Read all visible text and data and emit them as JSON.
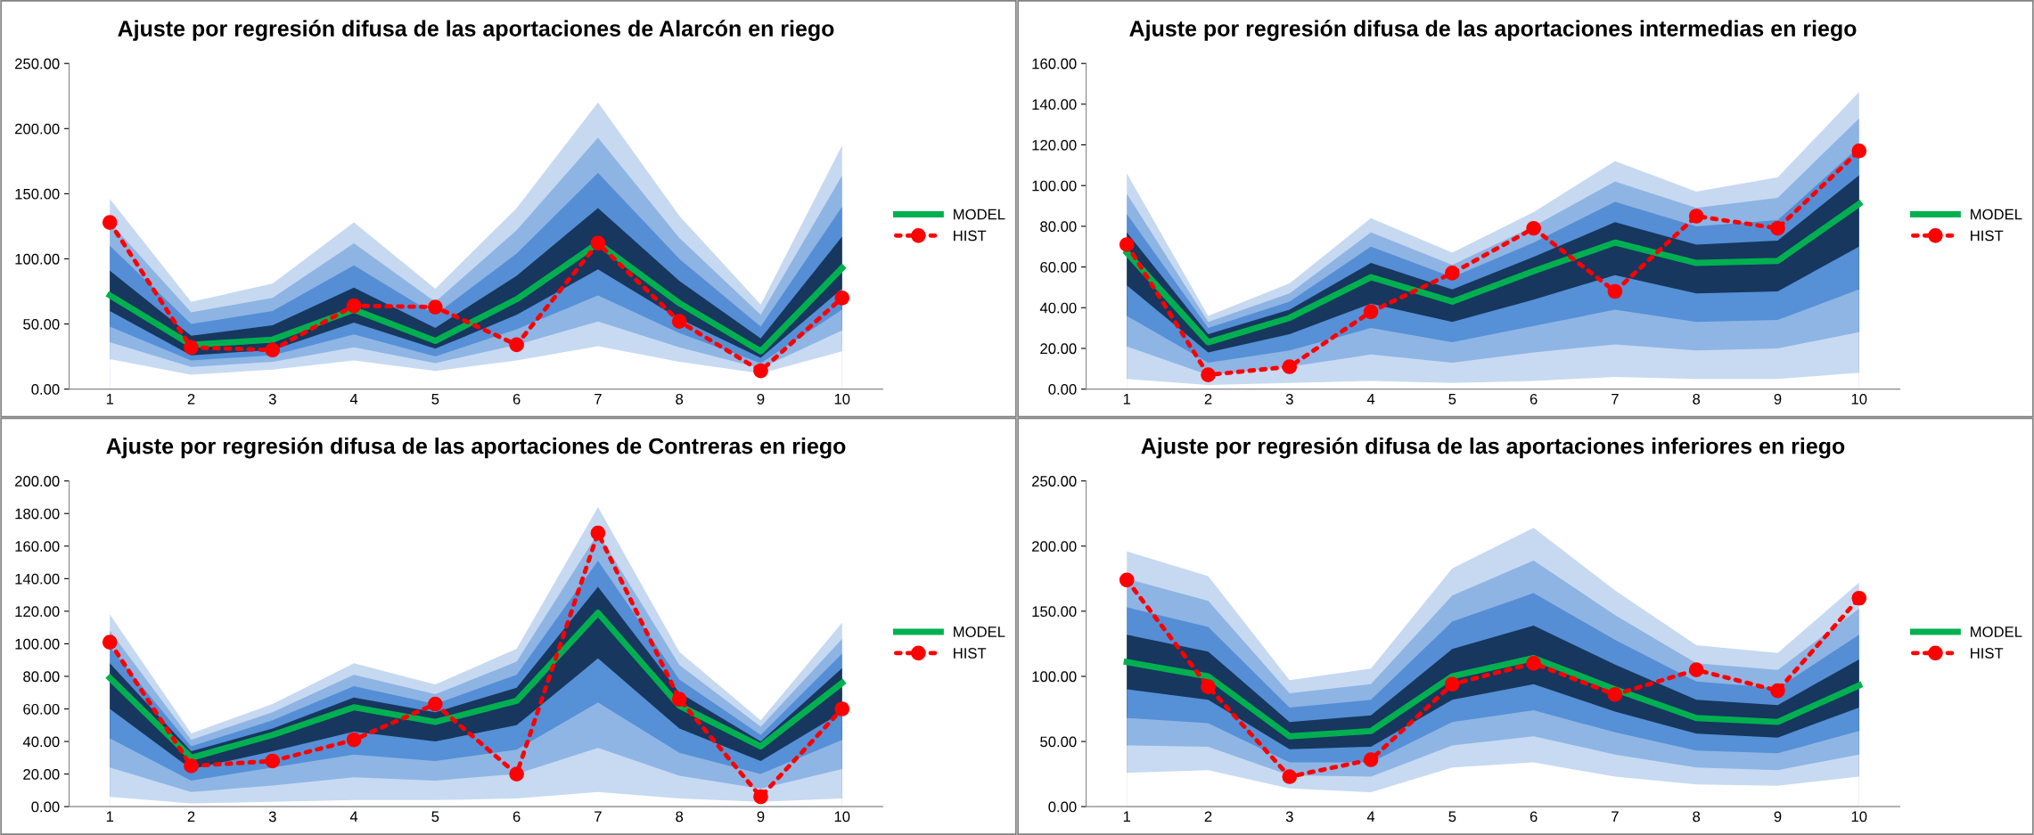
{
  "chart_data": [
    {
      "type": "line",
      "title": "Ajuste por regresión difusa de las aportaciones de Alarcón en riego",
      "categories": [
        "1",
        "2",
        "3",
        "4",
        "5",
        "6",
        "7",
        "8",
        "9",
        "10"
      ],
      "ylim": [
        0,
        250
      ],
      "yticks": [
        {
          "value": 0,
          "label": "0.00"
        },
        {
          "value": 50,
          "label": "50.00"
        },
        {
          "value": 100,
          "label": "100.00"
        },
        {
          "value": 150,
          "label": "150.00"
        },
        {
          "value": 200,
          "label": "200.00"
        },
        {
          "value": 250,
          "label": "250.00"
        }
      ],
      "legend": "right",
      "grid": false,
      "series": [
        {
          "type": "area",
          "color": "#c6d9f1",
          "values": [
            146,
            67,
            81,
            128,
            77,
            139,
            220,
            133,
            65,
            187
          ]
        },
        {
          "type": "area",
          "color": "#8eb4e3",
          "values": [
            128,
            59,
            70,
            112,
            67,
            122,
            193,
            116,
            57,
            164
          ]
        },
        {
          "type": "area",
          "color": "#558ed5",
          "values": [
            110,
            50,
            60,
            95,
            57,
            104,
            166,
            100,
            48,
            140
          ]
        },
        {
          "type": "area",
          "color": "#17375e",
          "values": [
            91,
            41,
            49,
            78,
            47,
            87,
            139,
            83,
            39,
            117
          ]
        },
        {
          "type": "area",
          "color": "#5690d6",
          "values": [
            60,
            26,
            30,
            51,
            31,
            57,
            92,
            54,
            24,
            77
          ]
        },
        {
          "type": "area",
          "color": "#8fb5e4",
          "values": [
            48,
            22,
            26,
            42,
            25,
            46,
            72,
            43,
            20,
            61
          ]
        },
        {
          "type": "area",
          "color": "#c7daf2",
          "values": [
            36,
            17,
            21,
            32,
            20,
            34,
            52,
            32,
            16,
            45
          ]
        },
        {
          "type": "area",
          "color": "#ffffff",
          "values": [
            23,
            11,
            15,
            22,
            14,
            22,
            33,
            21,
            12,
            29
          ]
        },
        {
          "name": "MODEL",
          "type": "line",
          "color": "#00b050",
          "marker": "none",
          "line_style": "solid",
          "values": [
            72,
            34,
            38,
            61,
            37,
            69,
            112,
            66,
            29,
            93
          ]
        },
        {
          "name": "HIST",
          "type": "line",
          "color": "#ff0000",
          "marker": "circle",
          "line_style": "dotted",
          "values": [
            128,
            32,
            30,
            64,
            63,
            34,
            112,
            52,
            14,
            70
          ]
        }
      ]
    },
    {
      "type": "line",
      "title": "Ajuste por regresión difusa de las aportaciones intermedias en riego",
      "categories": [
        "1",
        "2",
        "3",
        "4",
        "5",
        "6",
        "7",
        "8",
        "9",
        "10"
      ],
      "ylim": [
        0,
        160
      ],
      "yticks": [
        {
          "value": 0,
          "label": "0.00"
        },
        {
          "value": 20,
          "label": "20.00"
        },
        {
          "value": 40,
          "label": "40.00"
        },
        {
          "value": 60,
          "label": "60.00"
        },
        {
          "value": 80,
          "label": "80.00"
        },
        {
          "value": 100,
          "label": "100.00"
        },
        {
          "value": 120,
          "label": "120.00"
        },
        {
          "value": 140,
          "label": "140.00"
        },
        {
          "value": 160,
          "label": "160.00"
        }
      ],
      "legend": "right",
      "grid": false,
      "series": [
        {
          "type": "area",
          "color": "#c6d9f1",
          "values": [
            106,
            36,
            52,
            84,
            67,
            87,
            112,
            97,
            104,
            146
          ]
        },
        {
          "type": "area",
          "color": "#8eb4e3",
          "values": [
            96,
            33,
            47,
            77,
            61,
            80,
            102,
            89,
            94,
            133
          ]
        },
        {
          "type": "area",
          "color": "#558ed5",
          "values": [
            86,
            30,
            43,
            70,
            55,
            72,
            92,
            80,
            83,
            119
          ]
        },
        {
          "type": "area",
          "color": "#17375e",
          "values": [
            77,
            27,
            39,
            62,
            49,
            65,
            82,
            71,
            73,
            105
          ]
        },
        {
          "type": "area",
          "color": "#5690d6",
          "values": [
            51,
            18,
            27,
            42,
            33,
            44,
            56,
            47,
            48,
            70
          ]
        },
        {
          "type": "area",
          "color": "#8fb5e4",
          "values": [
            36,
            13,
            19,
            30,
            23,
            31,
            39,
            33,
            34,
            49
          ]
        },
        {
          "type": "area",
          "color": "#c7daf2",
          "values": [
            21,
            7,
            11,
            17,
            13,
            18,
            22,
            19,
            20,
            28
          ]
        },
        {
          "type": "area",
          "color": "#ffffff",
          "values": [
            5,
            2,
            3,
            4,
            3,
            4,
            6,
            5,
            5,
            8
          ]
        },
        {
          "name": "MODEL",
          "type": "line",
          "color": "#00b050",
          "marker": "none",
          "line_style": "solid",
          "values": [
            67,
            23,
            35,
            55,
            43,
            58,
            72,
            62,
            63,
            91
          ]
        },
        {
          "name": "HIST",
          "type": "line",
          "color": "#ff0000",
          "marker": "circle",
          "line_style": "dotted",
          "values": [
            71,
            7,
            11,
            38,
            57,
            79,
            48,
            85,
            79,
            117
          ]
        }
      ]
    },
    {
      "type": "line",
      "title": "Ajuste por regresión difusa de las aportaciones de Contreras en riego",
      "categories": [
        "1",
        "2",
        "3",
        "4",
        "5",
        "6",
        "7",
        "8",
        "9",
        "10"
      ],
      "ylim": [
        0,
        200
      ],
      "yticks": [
        {
          "value": 0,
          "label": "0.00"
        },
        {
          "value": 20,
          "label": "20.00"
        },
        {
          "value": 40,
          "label": "40.00"
        },
        {
          "value": 60,
          "label": "60.00"
        },
        {
          "value": 80,
          "label": "80.00"
        },
        {
          "value": 100,
          "label": "100.00"
        },
        {
          "value": 120,
          "label": "120.00"
        },
        {
          "value": 140,
          "label": "140.00"
        },
        {
          "value": 160,
          "label": "160.00"
        },
        {
          "value": 180,
          "label": "180.00"
        },
        {
          "value": 200,
          "label": "200.00"
        }
      ],
      "legend": "right",
      "grid": false,
      "series": [
        {
          "type": "area",
          "color": "#c6d9f1",
          "values": [
            118,
            45,
            63,
            88,
            75,
            97,
            184,
            95,
            53,
            113
          ]
        },
        {
          "type": "area",
          "color": "#8eb4e3",
          "values": [
            108,
            41,
            58,
            81,
            69,
            89,
            168,
            87,
            49,
            103
          ]
        },
        {
          "type": "area",
          "color": "#558ed5",
          "values": [
            98,
            37,
            53,
            74,
            63,
            81,
            151,
            78,
            44,
            94
          ]
        },
        {
          "type": "area",
          "color": "#17375e",
          "values": [
            88,
            34,
            48,
            67,
            58,
            73,
            135,
            70,
            40,
            85
          ]
        },
        {
          "type": "area",
          "color": "#5690d6",
          "values": [
            60,
            23,
            34,
            46,
            40,
            50,
            91,
            48,
            28,
            58
          ]
        },
        {
          "type": "area",
          "color": "#8fb5e4",
          "values": [
            42,
            16,
            24,
            32,
            28,
            35,
            64,
            33,
            20,
            41
          ]
        },
        {
          "type": "area",
          "color": "#c7daf2",
          "values": [
            24,
            9,
            13,
            18,
            16,
            20,
            36,
            19,
            11,
            23
          ]
        },
        {
          "type": "area",
          "color": "#ffffff",
          "values": [
            6,
            2,
            3,
            4,
            4,
            5,
            9,
            5,
            3,
            5
          ]
        },
        {
          "name": "MODEL",
          "type": "line",
          "color": "#00b050",
          "marker": "none",
          "line_style": "solid",
          "values": [
            79,
            30,
            44,
            61,
            52,
            65,
            119,
            62,
            37,
            76
          ]
        },
        {
          "name": "HIST",
          "type": "line",
          "color": "#ff0000",
          "marker": "circle",
          "line_style": "dotted",
          "values": [
            101,
            25,
            28,
            41,
            63,
            20,
            168,
            66,
            6,
            60
          ]
        }
      ]
    },
    {
      "type": "line",
      "title": "Ajuste por regresión difusa de las aportaciones inferiores en riego",
      "categories": [
        "1",
        "2",
        "3",
        "4",
        "5",
        "6",
        "7",
        "8",
        "9",
        "10"
      ],
      "ylim": [
        0,
        250
      ],
      "yticks": [
        {
          "value": 0,
          "label": "0.00"
        },
        {
          "value": 50,
          "label": "50.00"
        },
        {
          "value": 100,
          "label": "100.00"
        },
        {
          "value": 150,
          "label": "150.00"
        },
        {
          "value": 200,
          "label": "200.00"
        },
        {
          "value": 250,
          "label": "250.00"
        }
      ],
      "legend": "right",
      "grid": false,
      "series": [
        {
          "type": "area",
          "color": "#c6d9f1",
          "values": [
            196,
            177,
            97,
            106,
            183,
            214,
            166,
            124,
            118,
            172
          ]
        },
        {
          "type": "area",
          "color": "#8eb4e3",
          "values": [
            175,
            158,
            87,
            94,
            162,
            189,
            147,
            110,
            105,
            152
          ]
        },
        {
          "type": "area",
          "color": "#558ed5",
          "values": [
            153,
            138,
            76,
            82,
            142,
            164,
            128,
            96,
            91,
            132
          ]
        },
        {
          "type": "area",
          "color": "#17375e",
          "values": [
            132,
            119,
            65,
            70,
            121,
            139,
            109,
            82,
            78,
            113
          ]
        },
        {
          "type": "area",
          "color": "#5690d6",
          "values": [
            90,
            82,
            44,
            46,
            82,
            94,
            73,
            56,
            53,
            76
          ]
        },
        {
          "type": "area",
          "color": "#8fb5e4",
          "values": [
            68,
            64,
            34,
            34,
            65,
            74,
            57,
            43,
            41,
            58
          ]
        },
        {
          "type": "area",
          "color": "#c7daf2",
          "values": [
            47,
            46,
            24,
            23,
            47,
            54,
            40,
            30,
            28,
            40
          ]
        },
        {
          "type": "area",
          "color": "#ffffff",
          "values": [
            26,
            28,
            14,
            11,
            30,
            34,
            23,
            17,
            16,
            23
          ]
        },
        {
          "name": "MODEL",
          "type": "line",
          "color": "#00b050",
          "marker": "none",
          "line_style": "solid",
          "values": [
            111,
            100,
            54,
            58,
            100,
            114,
            90,
            68,
            65,
            93
          ]
        },
        {
          "name": "HIST",
          "type": "line",
          "color": "#ff0000",
          "marker": "circle",
          "line_style": "dotted",
          "values": [
            174,
            92,
            23,
            36,
            94,
            110,
            86,
            105,
            89,
            160
          ]
        }
      ]
    }
  ]
}
